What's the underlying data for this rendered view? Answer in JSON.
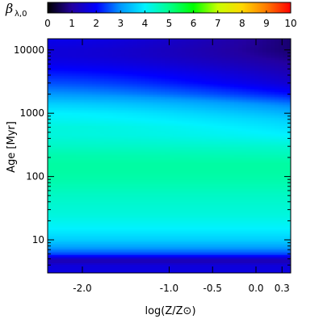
{
  "chart_data": {
    "type": "heatmap",
    "title": "",
    "xlabel": "log(Z/Z⊙)",
    "ylabel": "Age [Myr]",
    "colorbar": {
      "label": "βλ,0",
      "label_symbol": "β",
      "label_subscript": "λ,0",
      "range": [
        0,
        10
      ],
      "tick_labels": [
        "0",
        "1",
        "2",
        "3",
        "4",
        "5",
        "6",
        "7",
        "8",
        "9",
        "10"
      ],
      "colormap": "rainbow",
      "colors": [
        "#000000",
        "#2300a0",
        "#0000ff",
        "#0098ff",
        "#00f2ff",
        "#00ff8c",
        "#00ff00",
        "#c8ff00",
        "#ffd800",
        "#ff7a00",
        "#ff0000"
      ]
    },
    "x_axis": {
      "range": [
        -2.4,
        0.4
      ],
      "ticks": [
        -2.0,
        -1.0,
        -0.5,
        0.0,
        0.3
      ],
      "tick_labels": [
        "-2.0",
        "-1.0",
        "-0.5",
        "0.0",
        "0.3"
      ]
    },
    "y_axis": {
      "scale": "log",
      "range": [
        3,
        15000
      ],
      "ticks": [
        10,
        100,
        1000,
        10000
      ],
      "tick_labels": [
        "10",
        "100",
        "1000",
        "10000"
      ],
      "unit": "Myr"
    },
    "heatmap_profile": {
      "description_age_myr": [
        3,
        4,
        4.5,
        5,
        6,
        8,
        10,
        15,
        25,
        50,
        80,
        120,
        160,
        220,
        300,
        450,
        600,
        800,
        1000,
        1400,
        2000,
        3000,
        4500,
        6000,
        8000,
        10000,
        12000,
        15000
      ],
      "beta_at_logZ_-2.4": [
        1.7,
        1.6,
        1.2,
        1.4,
        2.5,
        3.2,
        3.6,
        4.0,
        4.3,
        4.5,
        4.7,
        4.8,
        4.8,
        4.7,
        4.5,
        4.3,
        4.3,
        4.1,
        4.0,
        3.6,
        3.0,
        2.5,
        2.1,
        1.8,
        1.6,
        1.6,
        1.7,
        1.8
      ],
      "beta_at_logZ_0.4": [
        1.7,
        1.6,
        1.2,
        1.4,
        2.5,
        3.2,
        3.6,
        4.0,
        4.3,
        4.5,
        4.7,
        4.8,
        4.8,
        4.6,
        4.4,
        4.0,
        3.8,
        3.6,
        3.3,
        2.8,
        2.1,
        1.5,
        1.2,
        1.0,
        0.8,
        0.7,
        0.7,
        0.7
      ]
    }
  }
}
